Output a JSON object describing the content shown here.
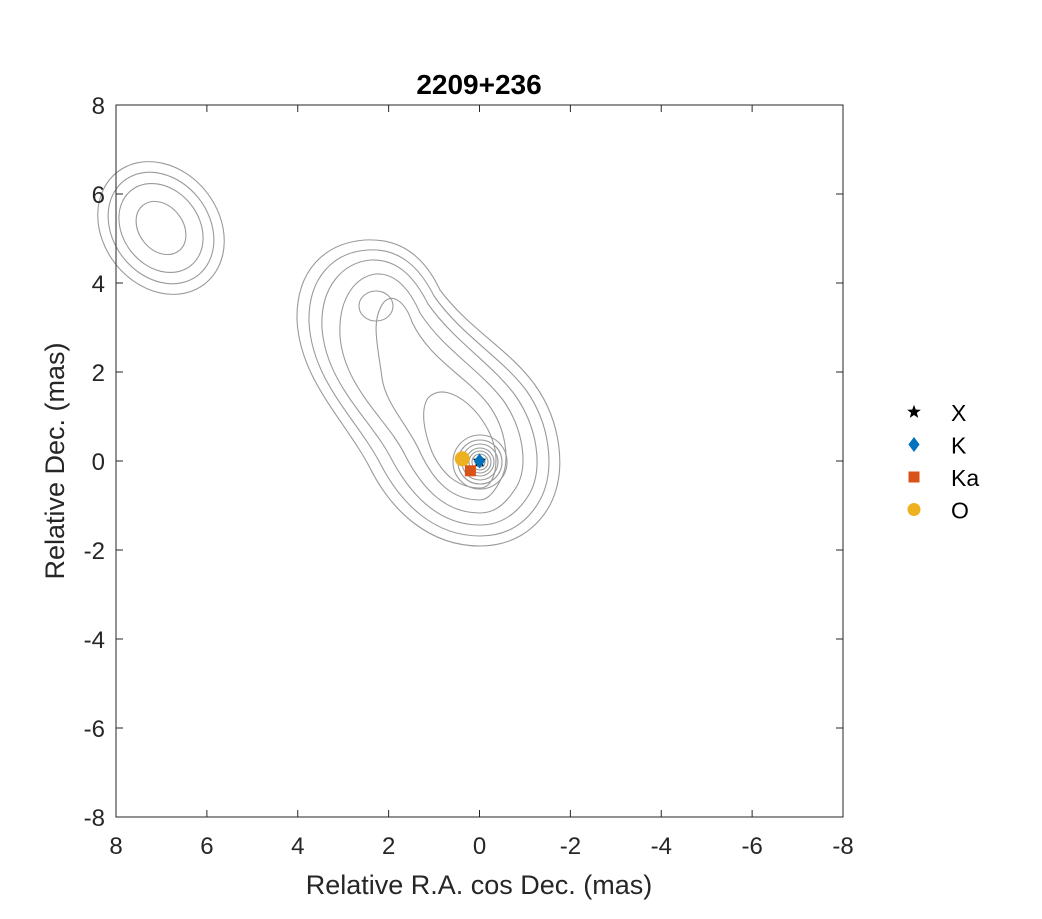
{
  "chart_data": {
    "type": "scatter",
    "title": "2209+236",
    "xlabel": "Relative R.A. cos Dec. (mas)",
    "ylabel": "Relative Dec. (mas)",
    "xlim": [
      8,
      -8
    ],
    "ylim": [
      -8,
      8
    ],
    "x_reversed": true,
    "xticks": [
      8,
      6,
      4,
      2,
      0,
      -2,
      -4,
      -6,
      -8
    ],
    "yticks": [
      8,
      6,
      4,
      2,
      0,
      -2,
      -4,
      -6,
      -8
    ],
    "grid": false,
    "legend_placement": "outside-right",
    "contour_color": "#9a9a9a",
    "series": [
      {
        "name": "X",
        "marker": "star",
        "color": "#000000",
        "x": [
          0.0
        ],
        "y": [
          0.0
        ]
      },
      {
        "name": "K",
        "marker": "diamond",
        "color": "#0072BD",
        "x": [
          0.0
        ],
        "y": [
          0.0
        ]
      },
      {
        "name": "Ka",
        "marker": "square",
        "color": "#D95319",
        "x": [
          0.2
        ],
        "y": [
          -0.22
        ]
      },
      {
        "name": "O",
        "marker": "circle",
        "color": "#EDB120",
        "x": [
          0.38
        ],
        "y": [
          0.05
        ]
      }
    ],
    "contours": [
      {
        "component": "core",
        "x": [
          0.0,
          1.55,
          3.03,
          3.95,
          3.8,
          3.0,
          2.0,
          1.4,
          0.5,
          -1.1,
          -1.75,
          -1.3,
          0.0,
          1.6,
          2.5,
          1.0,
          -1.2,
          -0.9,
          0.4,
          2.0,
          3.3,
          3.35,
          2.3,
          1.2,
          0.0
        ]
      },
      {
        "component": "knot"
      },
      {
        "component": "north-east"
      }
    ]
  }
}
